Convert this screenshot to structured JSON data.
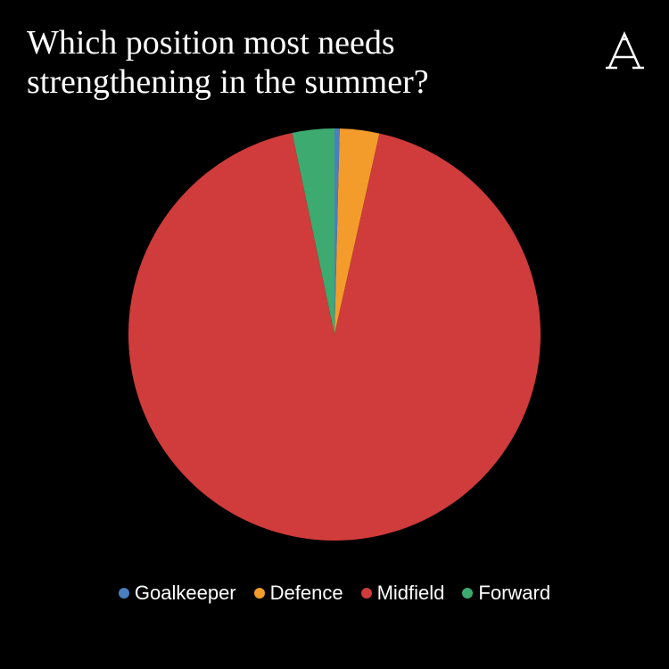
{
  "chart_data": {
    "type": "pie",
    "title": "Which position most needs strengthening in the summer?",
    "categories": [
      "Goalkeeper",
      "Defence",
      "Midfield",
      "Forward"
    ],
    "values": [
      0.4,
      3.1,
      93.2,
      3.3
    ],
    "colors": [
      "#4a7fc1",
      "#f39c2b",
      "#d03b3b",
      "#3daa6f"
    ],
    "legend": "bottom"
  }
}
